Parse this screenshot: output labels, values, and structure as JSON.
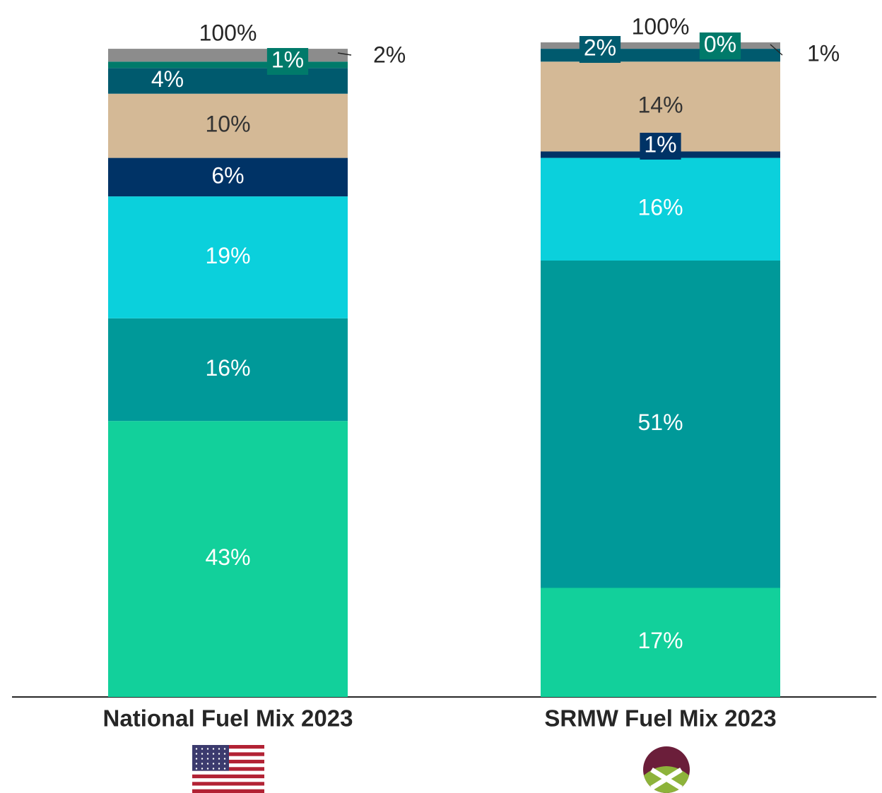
{
  "chart_data": {
    "type": "stacked_bar",
    "categories": [
      "National Fuel Mix 2023",
      "SRMW Fuel Mix 2023"
    ],
    "series": [
      {
        "color": "#12d09b",
        "values": [
          43,
          17
        ],
        "value_labels": [
          "43%",
          "17%"
        ]
      },
      {
        "color": "#009999",
        "values": [
          16,
          51
        ],
        "value_labels": [
          "16%",
          "51%"
        ]
      },
      {
        "color": "#0bd0dc",
        "values": [
          19,
          16
        ],
        "value_labels": [
          "19%",
          "16%"
        ]
      },
      {
        "color": "#003366",
        "values": [
          6,
          1
        ],
        "value_labels": [
          "6%",
          "1%"
        ]
      },
      {
        "color": "#d4b996",
        "values": [
          10,
          14
        ],
        "value_labels": [
          "10%",
          "14%"
        ]
      },
      {
        "color": "#005a6e",
        "values": [
          4,
          2
        ],
        "value_labels": [
          "4%",
          "2%"
        ]
      },
      {
        "color": "#007a6a",
        "values": [
          1,
          0
        ],
        "value_labels": [
          "1%",
          "0%"
        ]
      },
      {
        "color": "#8c8c8c",
        "values": [
          2,
          1
        ],
        "value_labels": [
          "2%",
          "1%"
        ]
      }
    ],
    "totals": {
      "values": [
        100,
        100
      ],
      "value_labels": [
        "100%",
        "100%"
      ]
    },
    "ylim": [
      0,
      102
    ]
  }
}
